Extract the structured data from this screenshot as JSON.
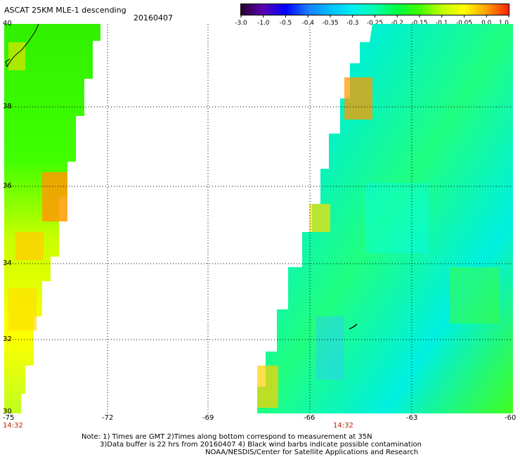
{
  "header": {
    "title": "ASCAT 25KM MLE-1 descending",
    "date": "20160407"
  },
  "colorbar": {
    "labels": [
      "-3.0",
      "-1.0",
      "-0.5",
      "-0.4",
      "-0.35",
      "-0.3",
      "-0.25",
      "-0.2",
      "-0.15",
      "-0.1",
      "-0.05",
      "0.0",
      "1.0"
    ],
    "colors": [
      "#2a0030",
      "#5a00b0",
      "#0000ff",
      "#1a7cff",
      "#00bfff",
      "#00f0f0",
      "#00ffb0",
      "#00ff40",
      "#40ff00",
      "#c0ff00",
      "#ffff00",
      "#ffa000",
      "#ff2000"
    ]
  },
  "map": {
    "lat_labels": [
      "40",
      "38",
      "36",
      "34",
      "32",
      "30"
    ],
    "lon_labels": [
      "-75",
      "-72",
      "-69",
      "-66",
      "-63",
      "-60"
    ],
    "time_labels": [
      "14:32",
      "14:32"
    ],
    "lat_range": [
      30,
      40
    ],
    "lon_range": [
      -75,
      -60
    ]
  },
  "notes": {
    "line1": "Note: 1) Times are GMT 2)Times along bottom correspond to measurement at 35N",
    "line2": "3)Data buffer is 22 hrs from 20160407 4) Black wind barbs indicate possible contamination",
    "line3": "NOAA/NESDIS/Center for Satellite Applications and Research"
  }
}
